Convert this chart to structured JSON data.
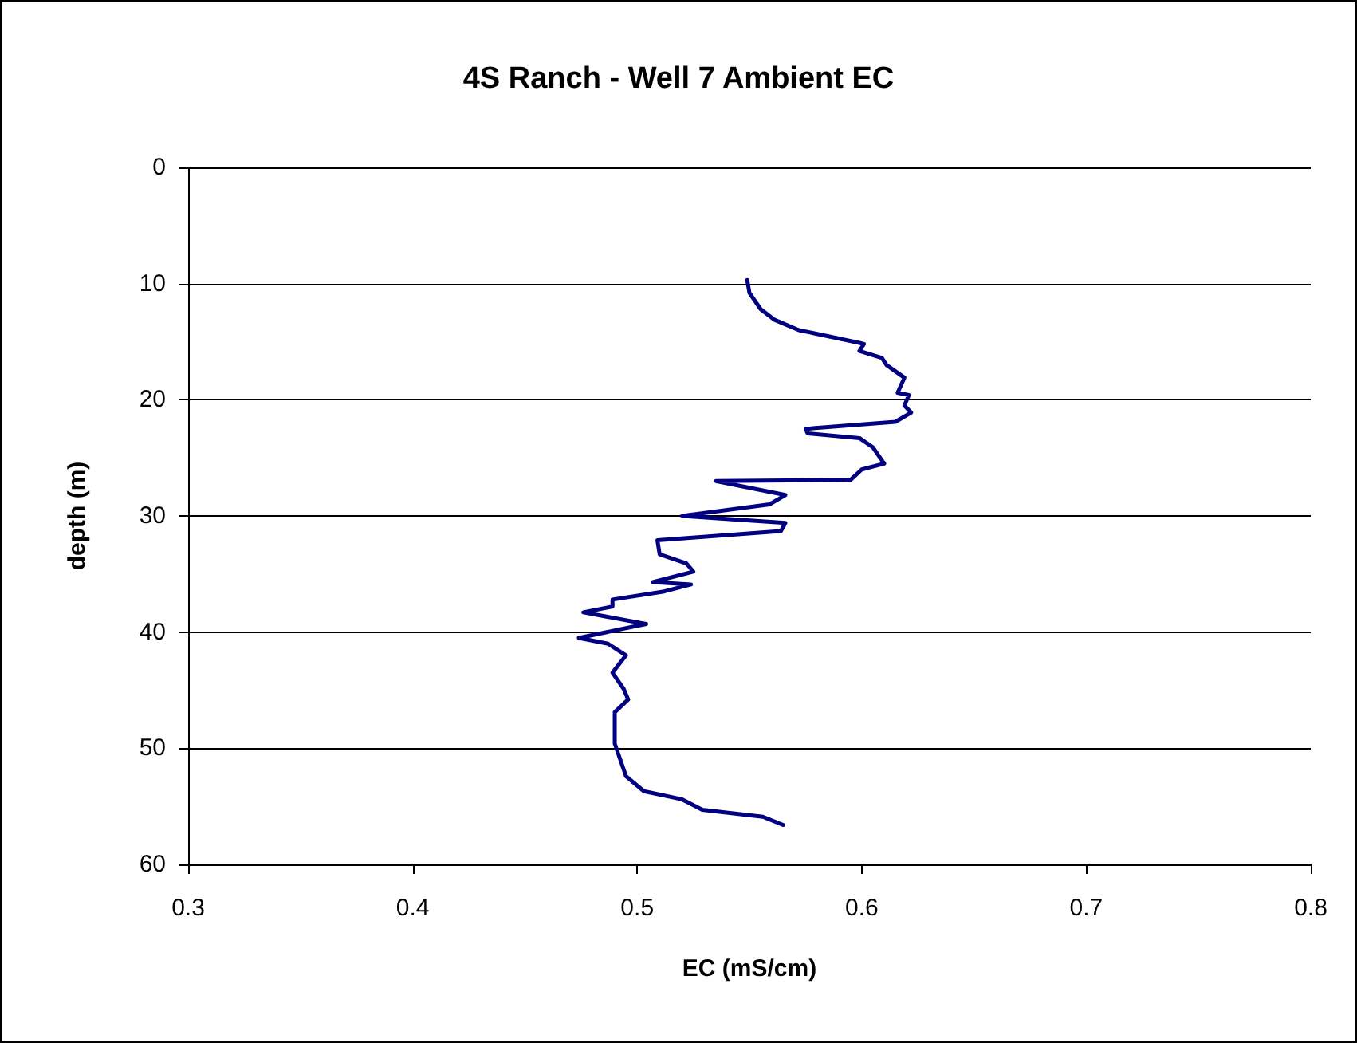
{
  "chart_data": {
    "type": "line",
    "title": "4S Ranch - Well 7 Ambient EC",
    "xlabel": "EC (mS/cm)",
    "ylabel": "depth (m)",
    "x": [
      0.549,
      0.55,
      0.555,
      0.561,
      0.572,
      0.599,
      0.601,
      0.599,
      0.609,
      0.611,
      0.619,
      0.616,
      0.621,
      0.619,
      0.622,
      0.615,
      0.575,
      0.576,
      0.599,
      0.605,
      0.61,
      0.6,
      0.595,
      0.535,
      0.566,
      0.559,
      0.52,
      0.566,
      0.564,
      0.509,
      0.51,
      0.522,
      0.525,
      0.507,
      0.524,
      0.512,
      0.489,
      0.489,
      0.476,
      0.504,
      0.474,
      0.487,
      0.495,
      0.489,
      0.494,
      0.496,
      0.49,
      0.49,
      0.495,
      0.503,
      0.52,
      0.529,
      0.556,
      0.565
    ],
    "series": [
      {
        "color": "#000080",
        "values": [
          9.7,
          10.8,
          12.2,
          13.1,
          14.0,
          15.1,
          15.2,
          15.8,
          16.4,
          17.0,
          18.1,
          19.4,
          19.6,
          20.5,
          21.1,
          21.9,
          22.5,
          22.9,
          23.3,
          24.1,
          25.5,
          26.0,
          26.9,
          27.0,
          28.2,
          29.0,
          30.0,
          30.6,
          31.3,
          32.1,
          33.3,
          34.1,
          34.8,
          35.7,
          35.9,
          36.5,
          37.2,
          37.8,
          38.3,
          39.3,
          40.5,
          41.0,
          42.0,
          43.5,
          44.9,
          45.8,
          46.9,
          49.6,
          52.4,
          53.7,
          54.4,
          55.3,
          55.9,
          56.6
        ]
      }
    ],
    "xlim": [
      0.3,
      0.8
    ],
    "xticks": [
      0.3,
      0.4,
      0.5,
      0.6,
      0.7,
      0.8
    ],
    "ylim": [
      60,
      0
    ],
    "yticks": [
      0,
      10,
      20,
      30,
      40,
      50,
      60
    ],
    "grid": "y",
    "marker": "none",
    "line_style": "solid"
  }
}
